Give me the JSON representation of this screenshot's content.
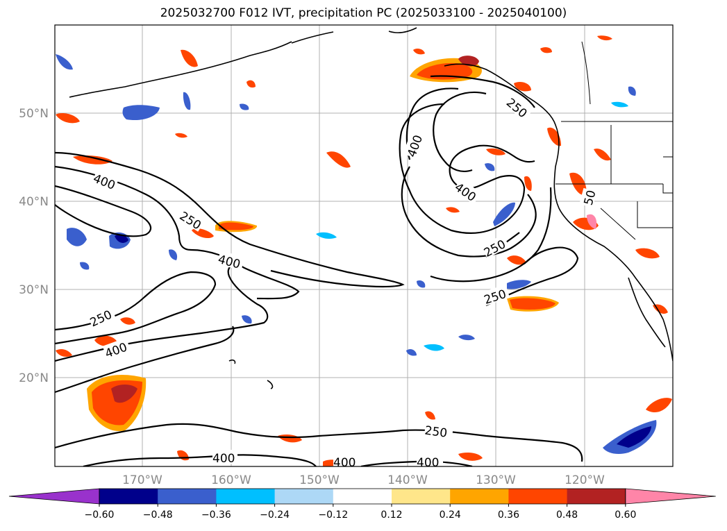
{
  "title": "2025032700 F012 IVT, precipitation PC (2025033100 - 2025040100)",
  "map": {
    "lat_labels": [
      "50°N",
      "40°N",
      "30°N",
      "20°N"
    ],
    "lon_labels": [
      "170°W",
      "160°W",
      "150°W",
      "140°W",
      "130°W",
      "120°W"
    ],
    "ivt_contour_labels": [
      "400",
      "250",
      "400",
      "250",
      "400",
      "400",
      "400",
      "400",
      "250",
      "250",
      "250",
      "400",
      "400",
      "250",
      "50"
    ]
  },
  "colorbar": {
    "ticks": [
      "−0.60",
      "−0.48",
      "−0.36",
      "−0.24",
      "−0.12",
      "0.12",
      "0.24",
      "0.36",
      "0.48",
      "0.60"
    ],
    "colors": [
      "#9932cc",
      "#00008b",
      "#3a5fcd",
      "#00bfff",
      "#add8f6",
      "#ffffff",
      "#ffe68a",
      "#ffa500",
      "#ff4500",
      "#b22222",
      "#ff85a8"
    ]
  }
}
